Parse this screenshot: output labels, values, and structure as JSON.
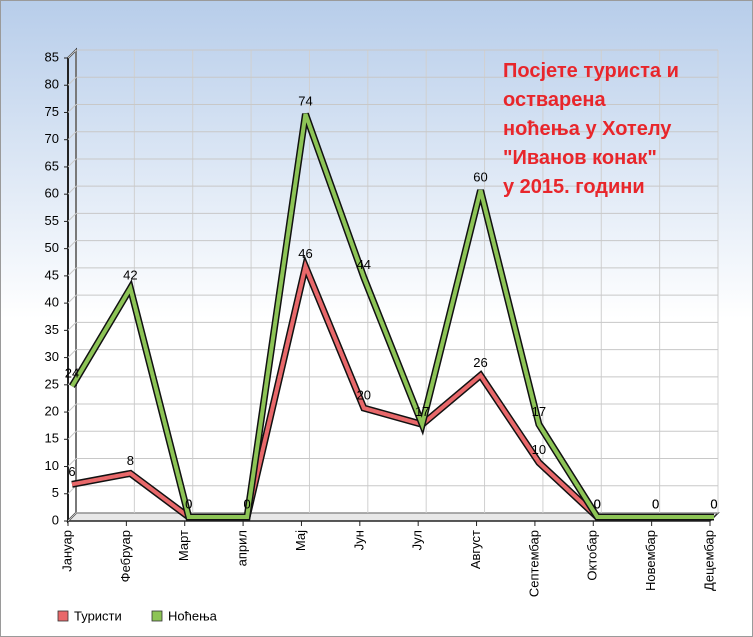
{
  "chart_data": {
    "type": "line",
    "title": [
      "Посјете туриста и",
      "остварена",
      "ноћења у Хотелу",
      "\"Иванов конак\"",
      "у 2015. години"
    ],
    "categories": [
      "Јануар",
      "Фебруар",
      "Март",
      "април",
      "Мај",
      "Јун",
      "Јул",
      "Август",
      "Септембар",
      "Октобар",
      "Новембар",
      "Децембар"
    ],
    "series": [
      {
        "name": "Туристи",
        "color": "#e8686a",
        "values": [
          6,
          8,
          0,
          0,
          46,
          20,
          17,
          26,
          10,
          0,
          0,
          0
        ]
      },
      {
        "name": "Ноћења",
        "color": "#8dc456",
        "values": [
          24,
          42,
          0,
          0,
          74,
          44,
          17,
          60,
          17,
          0,
          0,
          0
        ]
      }
    ],
    "ylim": [
      0,
      85
    ],
    "yticks": [
      0,
      5,
      10,
      15,
      20,
      25,
      30,
      35,
      40,
      45,
      50,
      55,
      60,
      65,
      70,
      75,
      80,
      85
    ],
    "grid": true,
    "legend": "bottom-left",
    "title_color": "#e8262b"
  }
}
